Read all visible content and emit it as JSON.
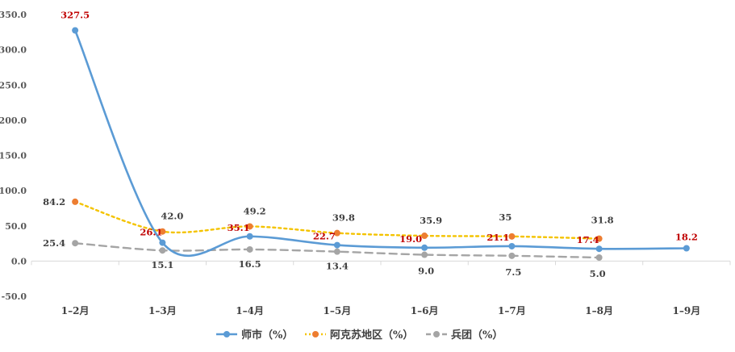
{
  "chart_data": {
    "type": "line",
    "categories": [
      "1–2月",
      "1–3月",
      "1–4月",
      "1–5月",
      "1–6月",
      "1–7月",
      "1–8月",
      "1–9月"
    ],
    "ylim": [
      -50,
      350
    ],
    "yticks": [
      "-50.0",
      "0.0",
      "50.0",
      "100.0",
      "150.0",
      "200.0",
      "250.0",
      "300.0",
      "350.0"
    ],
    "grid": false,
    "legend_position": "bottom",
    "series": [
      {
        "name": "师市（%）",
        "color": "#5B9BD5",
        "label_color": "#C00000",
        "values": [
          327.5,
          26.1,
          35.1,
          22.7,
          19.0,
          21.1,
          17.4,
          18.2
        ],
        "labels": [
          "327.5",
          "26.1",
          "35.1",
          "22.7",
          "19.0",
          "21.1",
          "17.4",
          "18.2"
        ]
      },
      {
        "name": "阿克苏地区（%）",
        "color": "#F4C300",
        "marker_color": "#ED7D31",
        "label_color": "#404040",
        "values": [
          84.2,
          42.0,
          49.2,
          39.8,
          35.9,
          35,
          31.8,
          null
        ],
        "labels": [
          "84.2",
          "42.0",
          "49.2",
          "39.8",
          "35.9",
          "35",
          "31.8",
          ""
        ]
      },
      {
        "name": "兵团（%）",
        "color": "#A5A5A5",
        "label_color": "#404040",
        "values": [
          25.4,
          15.1,
          16.5,
          13.4,
          9.0,
          7.5,
          5.0,
          null
        ],
        "labels": [
          "25.4",
          "15.1",
          "16.5",
          "13.4",
          "9.0",
          "7.5",
          "5.0",
          ""
        ]
      }
    ]
  }
}
